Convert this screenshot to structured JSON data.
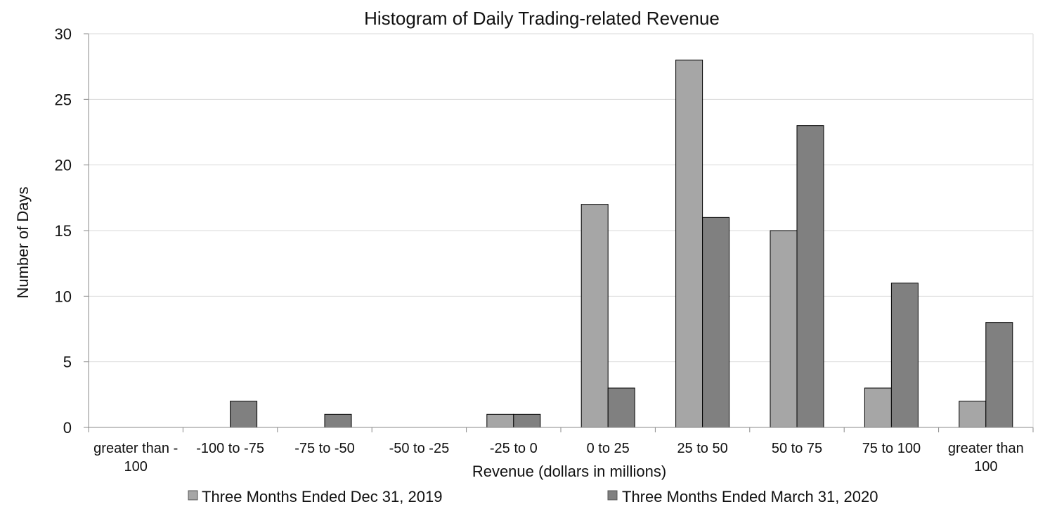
{
  "chart_data": {
    "type": "bar",
    "title": "Histogram of Daily Trading-related Revenue",
    "xlabel": "Revenue (dollars in millions)",
    "ylabel": "Number of Days",
    "ylim": [
      0,
      30
    ],
    "yticks": [
      0,
      5,
      10,
      15,
      20,
      25,
      30
    ],
    "grid": true,
    "legend_position": "bottom",
    "categories": [
      [
        "greater than -",
        "100"
      ],
      [
        "-100 to -75"
      ],
      [
        "-75 to -50"
      ],
      [
        "-50 to -25"
      ],
      [
        "-25 to 0"
      ],
      [
        "0 to 25"
      ],
      [
        "25 to 50"
      ],
      [
        "50 to 75"
      ],
      [
        "75 to 100"
      ],
      [
        "greater than",
        "100"
      ]
    ],
    "series": [
      {
        "name": "Three Months Ended Dec 31, 2019",
        "color": "#a6a6a6",
        "values": [
          0,
          0,
          0,
          0,
          1,
          17,
          28,
          15,
          3,
          2
        ]
      },
      {
        "name": "Three Months Ended March 31, 2020",
        "color": "#808080",
        "values": [
          0,
          2,
          1,
          0,
          1,
          3,
          16,
          23,
          11,
          8
        ]
      }
    ]
  }
}
